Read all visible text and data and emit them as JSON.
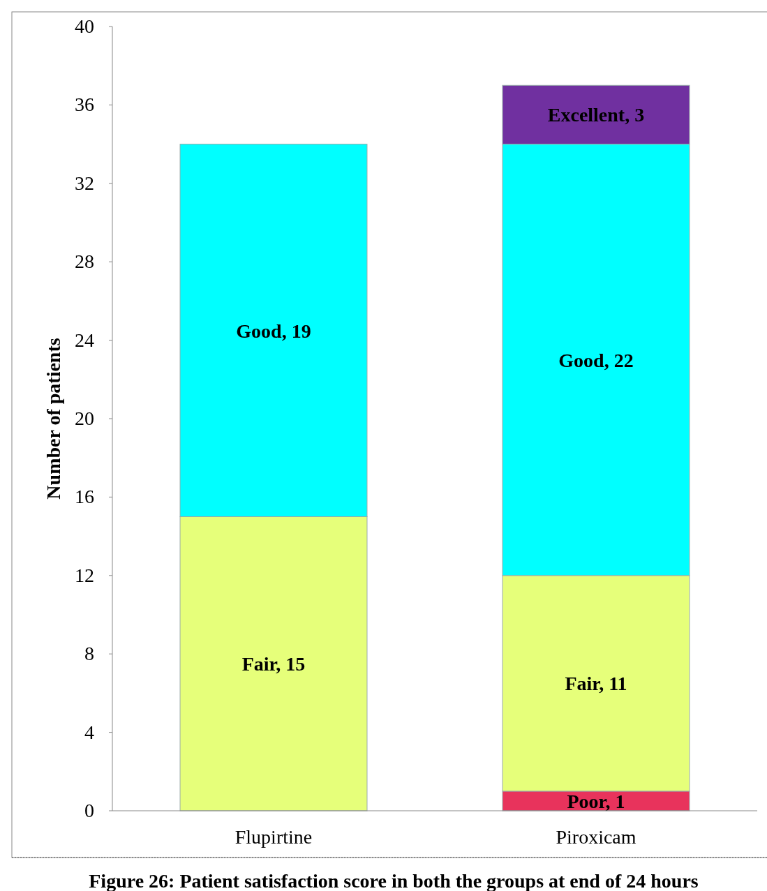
{
  "chart_data": {
    "type": "bar",
    "stacked": true,
    "title": "Figure 26: Patient satisfaction score in both the groups at end of 24 hours",
    "ylabel": "Number of patients",
    "categories": [
      "Flupirtine",
      "Piroxicam"
    ],
    "ylim": [
      0,
      40
    ],
    "yticks": [
      0,
      4,
      8,
      12,
      16,
      20,
      24,
      28,
      32,
      36,
      40
    ],
    "grid": false,
    "series": [
      {
        "color": "#e8335c",
        "values": [
          null,
          1
        ],
        "value_labels": [
          null,
          "Poor, 1"
        ]
      },
      {
        "color": "#e6ff7a",
        "values": [
          15,
          11
        ],
        "value_labels": [
          "Fair, 15",
          "Fair, 11"
        ]
      },
      {
        "color": "#00ffff",
        "values": [
          19,
          22
        ],
        "value_labels": [
          "Good, 19",
          "Good, 22"
        ]
      },
      {
        "color": "#7030a0",
        "values": [
          null,
          3
        ],
        "value_labels": [
          null,
          "Excellent, 3"
        ]
      }
    ]
  }
}
